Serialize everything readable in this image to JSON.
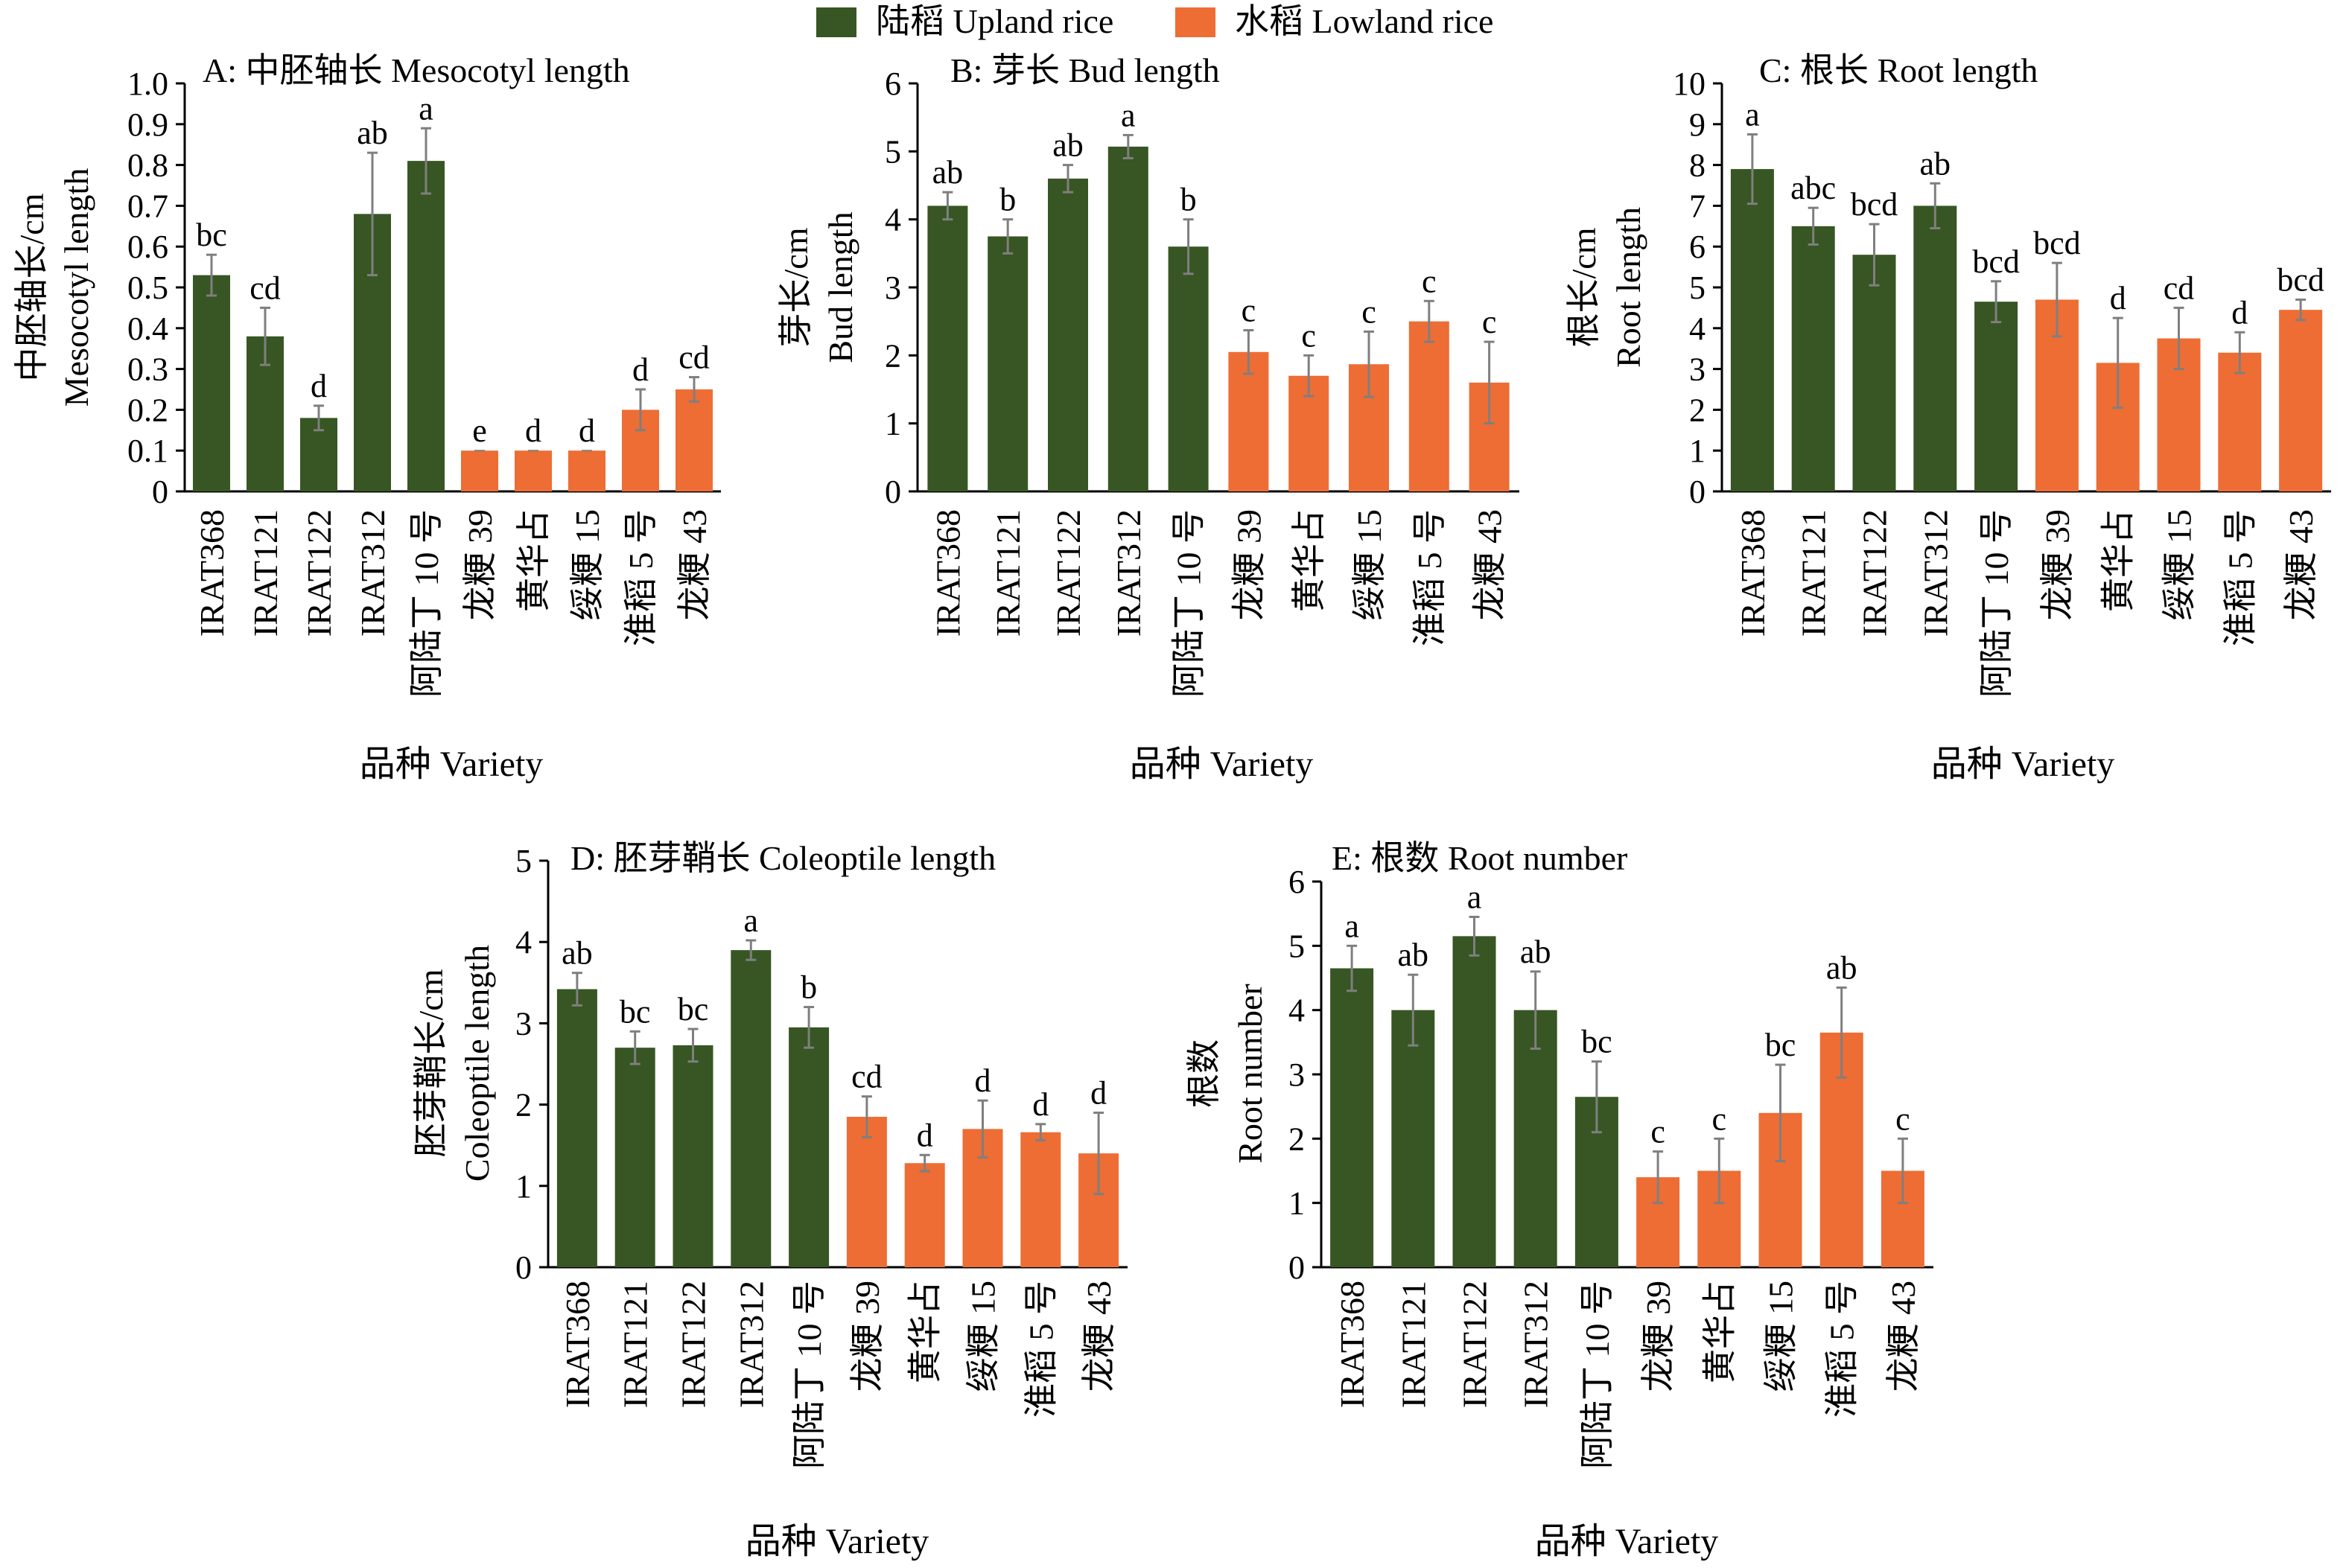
{
  "legend": {
    "upland_label": "陆稻 Upland rice",
    "lowland_label": "水稻 Lowland rice"
  },
  "colors": {
    "upland": "#375623",
    "lowland": "#ED6D35",
    "error_bar": "#7F7F7F",
    "axis": "#000000"
  },
  "chart_data": [
    {
      "type": "bar",
      "title": "A: 中胚轴长 Mesocotyl length",
      "ylabel_cn": "中胚轴长/cm",
      "ylabel_en": "Mesocotyl length",
      "xlabel": "品种 Variety",
      "ylim": [
        0,
        1.0
      ],
      "yticks": [
        0,
        0.1,
        0.2,
        0.3,
        0.4,
        0.5,
        0.6,
        0.7,
        0.8,
        0.9,
        1.0
      ],
      "ytick_labels": [
        "0",
        "0.1",
        "0.2",
        "0.3",
        "0.4",
        "0.5",
        "0.6",
        "0.7",
        "0.8",
        "0.9",
        "1.0"
      ],
      "categories": [
        "IRAT368",
        "IRAT121",
        "IRAT122",
        "IRAT312",
        "阿陆丁 10 号",
        "龙粳 39",
        "黄华占",
        "绥粳 15",
        "淮稻 5 号",
        "龙粳 43"
      ],
      "group": [
        "upland",
        "upland",
        "upland",
        "upland",
        "upland",
        "lowland",
        "lowland",
        "lowland",
        "lowland",
        "lowland"
      ],
      "values": [
        0.53,
        0.38,
        0.18,
        0.68,
        0.81,
        0.1,
        0.1,
        0.1,
        0.2,
        0.25
      ],
      "errors": [
        0.05,
        0.07,
        0.03,
        0.15,
        0.08,
        0.0,
        0.0,
        0.0,
        0.05,
        0.03
      ],
      "sig_labels": [
        "bc",
        "cd",
        "d",
        "ab",
        "a",
        "e",
        "d",
        "d",
        "d",
        "cd"
      ]
    },
    {
      "type": "bar",
      "title": "B: 芽长 Bud length",
      "ylabel_cn": "芽长/cm",
      "ylabel_en": "Bud length",
      "xlabel": "品种 Variety",
      "ylim": [
        0,
        6
      ],
      "yticks": [
        0,
        1,
        2,
        3,
        4,
        5,
        6
      ],
      "ytick_labels": [
        "0",
        "1",
        "2",
        "3",
        "4",
        "5",
        "6"
      ],
      "categories": [
        "IRAT368",
        "IRAT121",
        "IRAT122",
        "IRAT312",
        "阿陆丁 10 号",
        "龙粳 39",
        "黄华占",
        "绥粳 15",
        "淮稻 5 号",
        "龙粳 43"
      ],
      "group": [
        "upland",
        "upland",
        "upland",
        "upland",
        "upland",
        "lowland",
        "lowland",
        "lowland",
        "lowland",
        "lowland"
      ],
      "values": [
        4.2,
        3.75,
        4.6,
        5.07,
        3.6,
        2.05,
        1.7,
        1.87,
        2.5,
        1.6
      ],
      "errors": [
        0.2,
        0.25,
        0.2,
        0.17,
        0.4,
        0.32,
        0.3,
        0.48,
        0.3,
        0.6
      ],
      "sig_labels": [
        "ab",
        "b",
        "ab",
        "a",
        "b",
        "c",
        "c",
        "c",
        "c",
        "c"
      ]
    },
    {
      "type": "bar",
      "title": "C: 根长 Root length",
      "ylabel_cn": "根长/cm",
      "ylabel_en": "Root length",
      "xlabel": "品种 Variety",
      "ylim": [
        0,
        10
      ],
      "yticks": [
        0,
        1,
        2,
        3,
        4,
        5,
        6,
        7,
        8,
        9,
        10
      ],
      "ytick_labels": [
        "0",
        "1",
        "2",
        "3",
        "4",
        "5",
        "6",
        "7",
        "8",
        "9",
        "10"
      ],
      "categories": [
        "IRAT368",
        "IRAT121",
        "IRAT122",
        "IRAT312",
        "阿陆丁 10 号",
        "龙粳 39",
        "黄华占",
        "绥粳 15",
        "淮稻 5 号",
        "龙粳 43"
      ],
      "group": [
        "upland",
        "upland",
        "upland",
        "upland",
        "upland",
        "lowland",
        "lowland",
        "lowland",
        "lowland",
        "lowland"
      ],
      "values": [
        7.9,
        6.5,
        5.8,
        7.0,
        4.65,
        4.7,
        3.15,
        3.75,
        3.4,
        4.45
      ],
      "errors": [
        0.85,
        0.45,
        0.75,
        0.55,
        0.5,
        0.9,
        1.1,
        0.75,
        0.5,
        0.25
      ],
      "sig_labels": [
        "a",
        "abc",
        "bcd",
        "ab",
        "bcd",
        "bcd",
        "d",
        "cd",
        "d",
        "bcd"
      ]
    },
    {
      "type": "bar",
      "title": "D: 胚芽鞘长 Coleoptile length",
      "ylabel_cn": "胚芽鞘长/cm",
      "ylabel_en": "Coleoptile length",
      "xlabel": "品种 Variety",
      "ylim": [
        0,
        5
      ],
      "yticks": [
        0,
        1,
        2,
        3,
        4,
        5
      ],
      "ytick_labels": [
        "0",
        "1",
        "2",
        "3",
        "4",
        "5"
      ],
      "categories": [
        "IRAT368",
        "IRAT121",
        "IRAT122",
        "IRAT312",
        "阿陆丁 10 号",
        "龙粳 39",
        "黄华占",
        "绥粳 15",
        "淮稻 5 号",
        "龙粳 43"
      ],
      "group": [
        "upland",
        "upland",
        "upland",
        "upland",
        "upland",
        "lowland",
        "lowland",
        "lowland",
        "lowland",
        "lowland"
      ],
      "values": [
        3.42,
        2.7,
        2.73,
        3.9,
        2.95,
        1.85,
        1.28,
        1.7,
        1.66,
        1.4
      ],
      "errors": [
        0.2,
        0.2,
        0.2,
        0.12,
        0.25,
        0.25,
        0.1,
        0.35,
        0.1,
        0.5
      ],
      "sig_labels": [
        "ab",
        "bc",
        "bc",
        "a",
        "b",
        "cd",
        "d",
        "d",
        "d",
        "d"
      ]
    },
    {
      "type": "bar",
      "title": "E: 根数 Root number",
      "ylabel_cn": "根数",
      "ylabel_en": "Root number",
      "xlabel": "品种 Variety",
      "ylim": [
        0,
        6
      ],
      "yticks": [
        0,
        1,
        2,
        3,
        4,
        5,
        6
      ],
      "ytick_labels": [
        "0",
        "1",
        "2",
        "3",
        "4",
        "5",
        "6"
      ],
      "categories": [
        "IRAT368",
        "IRAT121",
        "IRAT122",
        "IRAT312",
        "阿陆丁 10 号",
        "龙粳 39",
        "黄华占",
        "绥粳 15",
        "淮稻 5 号",
        "龙粳 43"
      ],
      "group": [
        "upland",
        "upland",
        "upland",
        "upland",
        "upland",
        "lowland",
        "lowland",
        "lowland",
        "lowland",
        "lowland"
      ],
      "values": [
        4.65,
        4.0,
        5.15,
        4.0,
        2.65,
        1.4,
        1.5,
        2.4,
        3.65,
        1.5
      ],
      "errors": [
        0.35,
        0.55,
        0.3,
        0.6,
        0.55,
        0.4,
        0.5,
        0.75,
        0.7,
        0.5
      ],
      "sig_labels": [
        "a",
        "ab",
        "a",
        "ab",
        "bc",
        "c",
        "c",
        "bc",
        "ab",
        "c"
      ]
    }
  ]
}
